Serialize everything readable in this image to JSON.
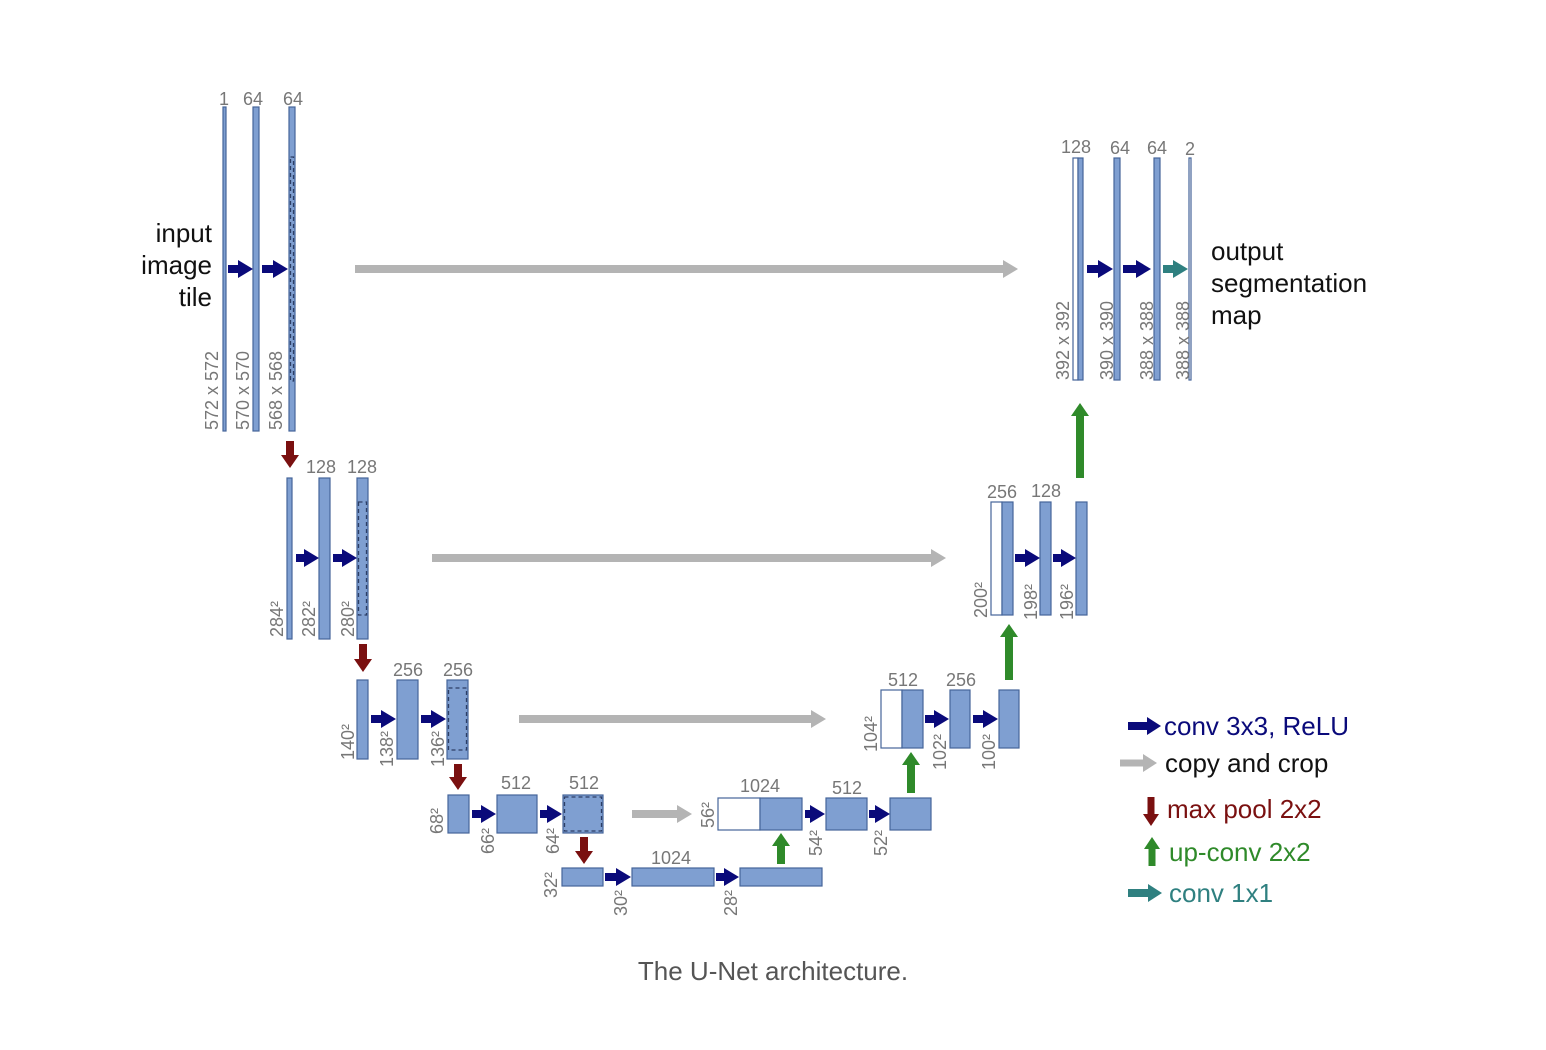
{
  "diagram": {
    "input_label": [
      "input",
      "image",
      "tile"
    ],
    "output_label": [
      "output",
      "segmentation",
      "map"
    ],
    "caption": "The U-Net architecture.",
    "colors": {
      "block_fill": "#7f9fd1",
      "block_stroke": "#45659a",
      "conv": "#0a0a7a",
      "copy": "#b4b4b4",
      "pool": "#7a1010",
      "upconv": "#2f8a2a",
      "conv1x1": "#2f8080",
      "label": "#777777"
    },
    "levels": [
      {
        "name": "level-1",
        "channels": [
          "1",
          "64",
          "64"
        ],
        "sizes": [
          "572 x 572",
          "570 x 570",
          "568 x 568"
        ],
        "out_channels": [
          "128",
          "64",
          "64",
          "2"
        ],
        "out_sizes": [
          "392 x 392",
          "390 x 390",
          "388 x 388",
          "388 x 388"
        ]
      },
      {
        "name": "level-2",
        "channels": [
          "128",
          "128"
        ],
        "sizes": [
          "284²",
          "282²",
          "280²"
        ],
        "out_channels": [
          "256",
          "128"
        ],
        "out_sizes": [
          "200²",
          "198²",
          "196²"
        ]
      },
      {
        "name": "level-3",
        "channels": [
          "256",
          "256"
        ],
        "sizes": [
          "140²",
          "138²",
          "136²"
        ],
        "out_channels": [
          "512",
          "256"
        ],
        "out_sizes": [
          "104²",
          "102²",
          "100²"
        ]
      },
      {
        "name": "level-4",
        "channels": [
          "512",
          "512"
        ],
        "sizes": [
          "68²",
          "66²",
          "64²"
        ],
        "out_channels": [
          "1024",
          "512"
        ],
        "out_sizes": [
          "56²",
          "54²",
          "52²"
        ]
      },
      {
        "name": "level-5",
        "channels": [
          "1024"
        ],
        "sizes": [
          "32²",
          "30²",
          "28²"
        ]
      }
    ],
    "legend": [
      {
        "label": "conv 3x3, ReLU",
        "icon": "right-arrow-icon",
        "color": "#0a0a7a"
      },
      {
        "label": "copy and crop",
        "icon": "right-arrow-icon",
        "color": "#b4b4b4"
      },
      {
        "label": "max pool 2x2",
        "icon": "down-arrow-icon",
        "color": "#7a1010"
      },
      {
        "label": "up-conv 2x2",
        "icon": "up-arrow-icon",
        "color": "#2f8a2a"
      },
      {
        "label": "conv 1x1",
        "icon": "right-arrow-icon",
        "color": "#2f8080"
      }
    ]
  }
}
